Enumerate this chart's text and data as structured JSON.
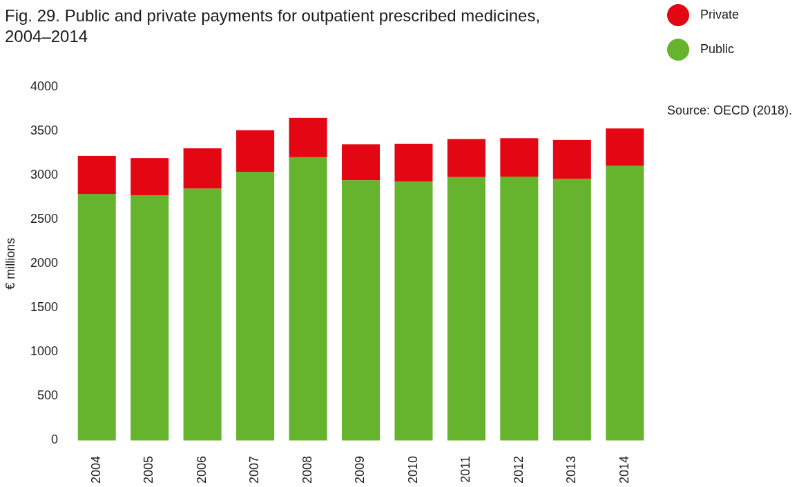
{
  "chart_data": {
    "type": "bar",
    "title": "Fig. 29. Public and private payments for outpatient prescribed medicines, 2004–2014",
    "categories": [
      "2004",
      "2005",
      "2006",
      "2007",
      "2008",
      "2009",
      "2010",
      "2011",
      "2012",
      "2013",
      "2014"
    ],
    "series": [
      {
        "name": "Public",
        "color": "#66b32e",
        "values": [
          2790,
          2775,
          2850,
          3040,
          3205,
          2945,
          2930,
          2980,
          2985,
          2960,
          3110
        ]
      },
      {
        "name": "Private",
        "color": "#e30613",
        "values": [
          430,
          420,
          455,
          470,
          445,
          405,
          425,
          430,
          435,
          440,
          420
        ]
      }
    ],
    "stacked": true,
    "ylim": [
      0,
      4000
    ],
    "yticks": [
      0,
      500,
      1000,
      1500,
      2000,
      2500,
      3000,
      3500,
      4000
    ],
    "ylabel": "€ millions",
    "legend": "top right",
    "annotations": [
      "Source: OECD (2018)."
    ]
  }
}
